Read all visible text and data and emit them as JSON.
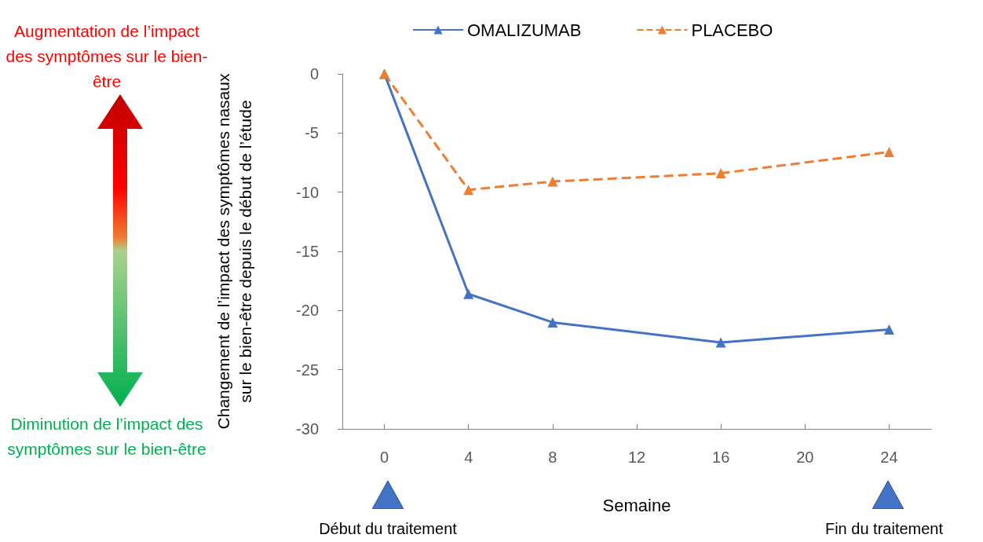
{
  "chart_data": {
    "type": "line",
    "xlabel": "Semaine",
    "ylabel": "Changement de l’impact des symptômes nasaux sur le bien-être depuis le début de l’étude",
    "x": [
      0,
      4,
      8,
      16,
      24
    ],
    "series": [
      {
        "name": "OMALIZUMAB",
        "color": "#4472c4",
        "line_style": "solid",
        "values": [
          0,
          -18.6,
          -21.0,
          -22.7,
          -21.6
        ]
      },
      {
        "name": "PLACEBO",
        "color": "#ed7d31",
        "line_style": "dashed",
        "values": [
          0,
          -9.8,
          -9.1,
          -8.4,
          -6.6
        ]
      }
    ],
    "xlim": [
      -2,
      26
    ],
    "xticks": [
      0,
      4,
      8,
      12,
      16,
      20,
      24
    ],
    "ylim": [
      -30,
      0
    ],
    "yticks": [
      -30,
      -25,
      -20,
      -15,
      -10,
      -5,
      0
    ],
    "grid": false,
    "legend": "top",
    "marker": "triangle",
    "annotations": [
      "Augmentation de l’impact des symptômes sur le bien-être",
      "Diminution de l’impact des symptômes sur le bien-être",
      "Début du traitement",
      "Fin du traitement"
    ]
  }
}
